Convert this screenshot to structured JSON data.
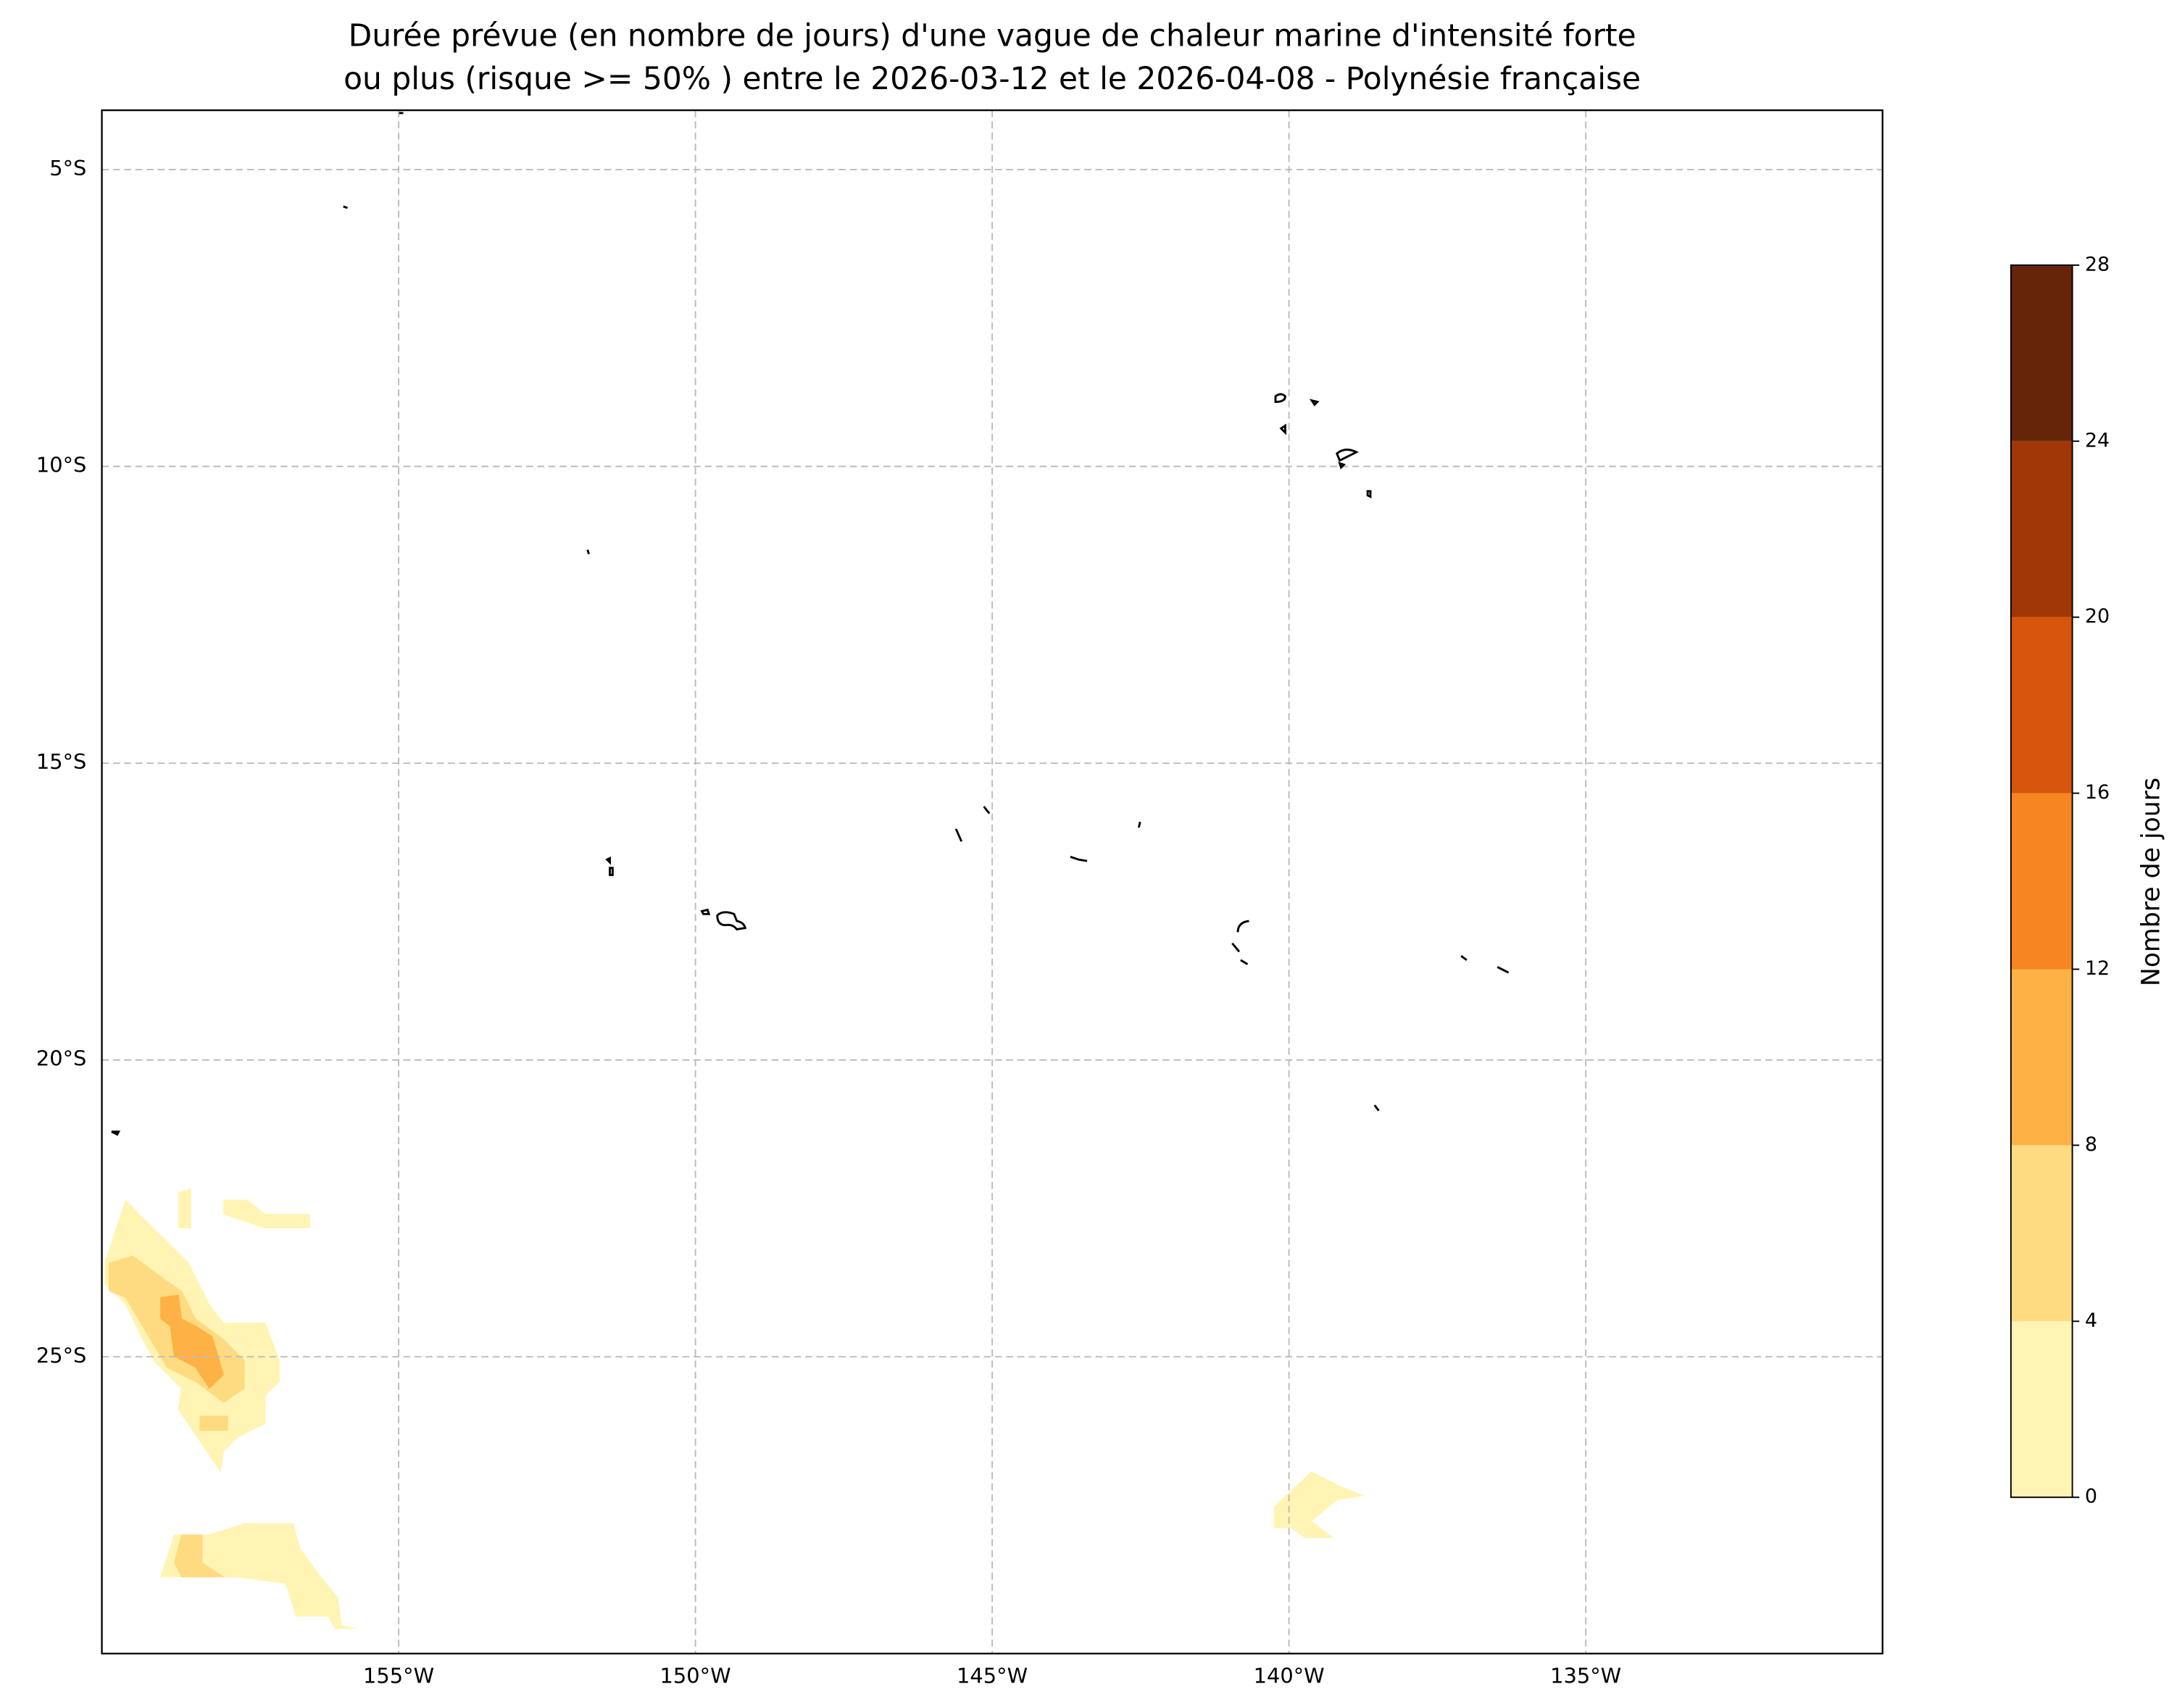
{
  "chart_data": {
    "type": "filled-contour-map",
    "title": [
      "Durée prévue (en nombre de jours) d'une vague de chaleur marine d'intensité forte",
      "ou plus (risque >= 50% ) entre le 2026-03-12 et le 2026-04-08 - Polynésie française"
    ],
    "xlim": [
      -160,
      -130
    ],
    "ylim": [
      -30,
      -4
    ],
    "xticks": [
      {
        "value": -155,
        "label": "155°W"
      },
      {
        "value": -150,
        "label": "150°W"
      },
      {
        "value": -145,
        "label": "145°W"
      },
      {
        "value": -140,
        "label": "140°W"
      },
      {
        "value": -135,
        "label": "135°W"
      }
    ],
    "yticks": [
      {
        "value": -5,
        "label": "5°S"
      },
      {
        "value": -10,
        "label": "10°S"
      },
      {
        "value": -15,
        "label": "15°S"
      },
      {
        "value": -20,
        "label": "20°S"
      },
      {
        "value": -25,
        "label": "25°S"
      }
    ],
    "grid": true,
    "colorbar": {
      "label": "Nombre de jours",
      "levels": [
        0,
        4,
        8,
        12,
        16,
        20,
        24,
        28
      ],
      "colors": [
        "#fff4b3",
        "#fedb80",
        "#feb144",
        "#f68522",
        "#d7560b",
        "#a13607",
        "#662408"
      ]
    },
    "regions": [
      {
        "level": 0,
        "polygon": [
          [
            -159.95,
            -23.42
          ],
          [
            -159.6,
            -22.36
          ],
          [
            -159.37,
            -22.6
          ],
          [
            -158.78,
            -23.18
          ],
          [
            -158.54,
            -23.42
          ],
          [
            -158.19,
            -24.12
          ],
          [
            -157.95,
            -24.43
          ],
          [
            -157.25,
            -24.43
          ],
          [
            -157.01,
            -25.06
          ],
          [
            -157.01,
            -25.42
          ],
          [
            -157.25,
            -25.65
          ],
          [
            -157.25,
            -26.12
          ],
          [
            -157.72,
            -26.36
          ],
          [
            -157.95,
            -26.59
          ],
          [
            -158.0,
            -26.94
          ],
          [
            -158.24,
            -26.59
          ],
          [
            -158.71,
            -25.89
          ],
          [
            -158.66,
            -25.53
          ],
          [
            -159.13,
            -25.06
          ],
          [
            -159.37,
            -24.59
          ],
          [
            -159.6,
            -24.12
          ],
          [
            -159.95,
            -23.77
          ]
        ]
      },
      {
        "level": 0,
        "polygon": [
          [
            -158.71,
            -22.83
          ],
          [
            -158.71,
            -22.24
          ],
          [
            -158.5,
            -22.17
          ],
          [
            -158.5,
            -22.83
          ]
        ]
      },
      {
        "level": 0,
        "polygon": [
          [
            -157.95,
            -22.36
          ],
          [
            -157.55,
            -22.36
          ],
          [
            -157.25,
            -22.6
          ],
          [
            -156.5,
            -22.6
          ],
          [
            -156.5,
            -22.83
          ],
          [
            -157.25,
            -22.83
          ],
          [
            -157.95,
            -22.6
          ]
        ]
      },
      {
        "level": 0,
        "polygon": [
          [
            -159.01,
            -28.71
          ],
          [
            -158.78,
            -28.0
          ],
          [
            -158.19,
            -28.0
          ],
          [
            -157.6,
            -27.81
          ],
          [
            -156.78,
            -27.81
          ],
          [
            -156.66,
            -28.24
          ],
          [
            -156.31,
            -28.71
          ],
          [
            -156.03,
            -29.06
          ],
          [
            -155.96,
            -29.53
          ],
          [
            -155.72,
            -29.58
          ],
          [
            -156.07,
            -29.58
          ],
          [
            -156.19,
            -29.37
          ],
          [
            -156.73,
            -29.37
          ],
          [
            -156.9,
            -28.82
          ],
          [
            -157.72,
            -28.71
          ]
        ]
      },
      {
        "level": 0,
        "polygon": [
          [
            -140.25,
            -27.53
          ],
          [
            -139.62,
            -26.94
          ],
          [
            -139.15,
            -27.18
          ],
          [
            -138.75,
            -27.34
          ],
          [
            -139.19,
            -27.41
          ],
          [
            -139.62,
            -27.77
          ],
          [
            -139.26,
            -28.05
          ],
          [
            -139.73,
            -28.05
          ],
          [
            -139.97,
            -27.88
          ],
          [
            -140.25,
            -27.88
          ]
        ]
      },
      {
        "level": 4,
        "polygon": [
          [
            -159.88,
            -23.42
          ],
          [
            -159.48,
            -23.3
          ],
          [
            -159.01,
            -23.65
          ],
          [
            -158.66,
            -23.89
          ],
          [
            -158.42,
            -24.36
          ],
          [
            -157.95,
            -24.71
          ],
          [
            -157.6,
            -25.06
          ],
          [
            -157.6,
            -25.53
          ],
          [
            -157.95,
            -25.77
          ],
          [
            -158.42,
            -25.42
          ],
          [
            -158.9,
            -25.18
          ],
          [
            -159.25,
            -24.59
          ],
          [
            -159.6,
            -24.0
          ],
          [
            -159.88,
            -23.89
          ]
        ]
      },
      {
        "level": 4,
        "polygon": [
          [
            -158.35,
            -26.0
          ],
          [
            -157.88,
            -26.0
          ],
          [
            -157.88,
            -26.24
          ],
          [
            -158.35,
            -26.24
          ]
        ]
      },
      {
        "level": 4,
        "polygon": [
          [
            -158.78,
            -28.47
          ],
          [
            -158.66,
            -28.0
          ],
          [
            -158.31,
            -28.0
          ],
          [
            -158.31,
            -28.47
          ],
          [
            -157.95,
            -28.71
          ],
          [
            -158.66,
            -28.71
          ]
        ]
      },
      {
        "level": 8,
        "polygon": [
          [
            -159.01,
            -24.0
          ],
          [
            -158.71,
            -23.96
          ],
          [
            -158.66,
            -24.36
          ],
          [
            -158.42,
            -24.48
          ],
          [
            -158.14,
            -24.66
          ],
          [
            -157.95,
            -25.3
          ],
          [
            -158.19,
            -25.53
          ],
          [
            -158.42,
            -25.18
          ],
          [
            -158.78,
            -24.99
          ],
          [
            -158.85,
            -24.48
          ],
          [
            -159.01,
            -24.36
          ]
        ]
      }
    ]
  }
}
